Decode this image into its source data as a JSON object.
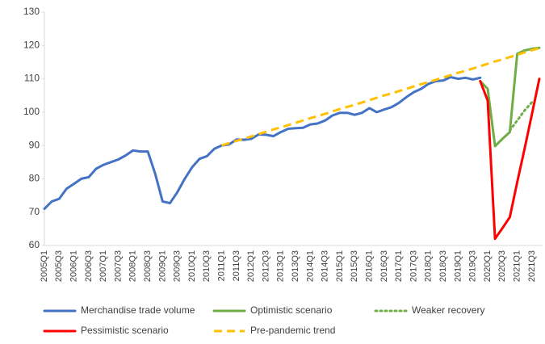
{
  "chart_data": {
    "type": "line",
    "categories": [
      "2005Q1",
      null,
      "2005Q3",
      null,
      "2006Q1",
      null,
      "2006Q3",
      null,
      "2007Q1",
      null,
      "2007Q3",
      null,
      "2008Q1",
      null,
      "2008Q3",
      null,
      "2009Q1",
      null,
      "2009Q3",
      null,
      "2010Q1",
      null,
      "2010Q3",
      null,
      "2011Q1",
      null,
      "2011Q3",
      null,
      "2012Q1",
      null,
      "2012Q3",
      null,
      "2013Q1",
      null,
      "2013Q3",
      null,
      "2014Q1",
      null,
      "2014Q3",
      null,
      "2015Q1",
      null,
      "2015Q3",
      null,
      "2016Q1",
      null,
      "2016Q3",
      null,
      "2017Q1",
      null,
      "2017Q3",
      null,
      "2018Q1",
      null,
      "2018Q3",
      null,
      "2019Q1",
      null,
      "2019Q3",
      null,
      "2020Q1",
      null,
      "2020Q3",
      null,
      "2021Q1",
      null,
      "2021Q3",
      null
    ],
    "series": [
      {
        "name": "Merchandise trade volume",
        "color": "#4472c4",
        "dash": "solid",
        "values": [
          71,
          73.2,
          74,
          77,
          78.5,
          80,
          80.5,
          83,
          84.2,
          85,
          85.8,
          87,
          88.5,
          88.2,
          88.2,
          81.5,
          73.2,
          72.7,
          76,
          80,
          83.5,
          86,
          86.8,
          89,
          90,
          90.3,
          91.8,
          91.7,
          92,
          93.3,
          93.2,
          92.8,
          94,
          95,
          95.2,
          95.3,
          96.3,
          96.6,
          97.5,
          99,
          99.8,
          99.8,
          99.2,
          99.8,
          101.2,
          100,
          100.8,
          101.5,
          102.8,
          104.5,
          106,
          107,
          108.5,
          109.3,
          109.5,
          110.5,
          110,
          110.3,
          109.8,
          110.3,
          null,
          null,
          null,
          null,
          null,
          null,
          null,
          null
        ]
      },
      {
        "name": "Optimistic scenario",
        "color": "#70ad47",
        "dash": "solid",
        "values": [
          null,
          null,
          null,
          null,
          null,
          null,
          null,
          null,
          null,
          null,
          null,
          null,
          null,
          null,
          null,
          null,
          null,
          null,
          null,
          null,
          null,
          null,
          null,
          null,
          null,
          null,
          null,
          null,
          null,
          null,
          null,
          null,
          null,
          null,
          null,
          null,
          null,
          null,
          null,
          null,
          null,
          null,
          null,
          null,
          null,
          null,
          null,
          null,
          null,
          null,
          null,
          null,
          null,
          null,
          null,
          null,
          null,
          null,
          null,
          109.3,
          107,
          89.8,
          92,
          94,
          117.5,
          118.5,
          119,
          119.3
        ]
      },
      {
        "name": "Weaker recovery",
        "color": "#70ad47",
        "dash": "dotted",
        "values": [
          null,
          null,
          null,
          null,
          null,
          null,
          null,
          null,
          null,
          null,
          null,
          null,
          null,
          null,
          null,
          null,
          null,
          null,
          null,
          null,
          null,
          null,
          null,
          null,
          null,
          null,
          null,
          null,
          null,
          null,
          null,
          null,
          null,
          null,
          null,
          null,
          null,
          null,
          null,
          null,
          null,
          null,
          null,
          null,
          null,
          null,
          null,
          null,
          null,
          null,
          null,
          null,
          null,
          null,
          null,
          null,
          null,
          null,
          null,
          null,
          null,
          null,
          null,
          94.5,
          97.5,
          100.5,
          103,
          null
        ]
      },
      {
        "name": "Pessimistic scenario",
        "color": "#ff0000",
        "dash": "solid",
        "values": [
          null,
          null,
          null,
          null,
          null,
          null,
          null,
          null,
          null,
          null,
          null,
          null,
          null,
          null,
          null,
          null,
          null,
          null,
          null,
          null,
          null,
          null,
          null,
          null,
          null,
          null,
          null,
          null,
          null,
          null,
          null,
          null,
          null,
          null,
          null,
          null,
          null,
          null,
          null,
          null,
          null,
          null,
          null,
          null,
          null,
          null,
          null,
          null,
          null,
          null,
          null,
          null,
          null,
          null,
          null,
          null,
          null,
          null,
          null,
          109.3,
          103.5,
          62,
          65.2,
          68.5,
          79,
          89,
          99.5,
          110
        ]
      },
      {
        "name": "Pre-pandemic trend",
        "color": "#ffc000",
        "dash": "dashed",
        "values": [
          null,
          null,
          null,
          null,
          null,
          null,
          null,
          null,
          null,
          null,
          null,
          null,
          null,
          null,
          null,
          null,
          null,
          null,
          null,
          null,
          null,
          null,
          null,
          null,
          90,
          90.7,
          91.4,
          92,
          92.7,
          93.4,
          94.1,
          94.8,
          95.4,
          96.1,
          96.8,
          97.5,
          98.2,
          98.8,
          99.5,
          100.2,
          100.9,
          101.6,
          102.2,
          102.9,
          103.6,
          104.3,
          105,
          105.6,
          106.3,
          107,
          107.7,
          108.4,
          109,
          109.7,
          110.4,
          111.1,
          111.8,
          112.4,
          113.1,
          113.8,
          114.5,
          115.2,
          115.8,
          116.5,
          117.2,
          117.9,
          118.6,
          119.2
        ]
      }
    ],
    "ylim": [
      60,
      130
    ],
    "yticks": [
      60,
      70,
      80,
      90,
      100,
      110,
      120,
      130
    ],
    "legend": "bottom",
    "grid": false
  }
}
